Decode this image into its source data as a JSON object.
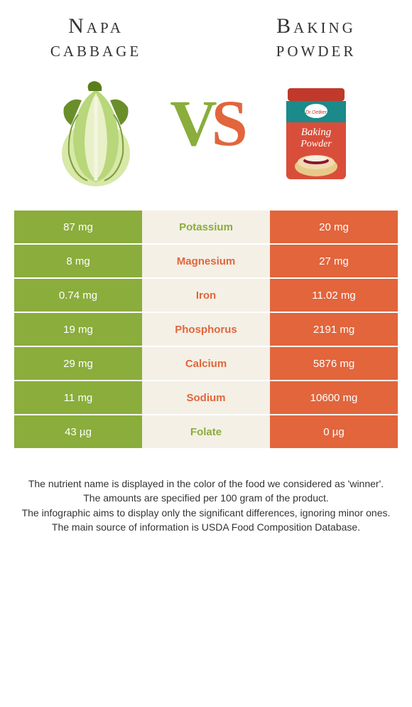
{
  "colors": {
    "left": "#8aad3c",
    "right": "#e2653c",
    "mid_bg": "#f4f0e6",
    "text": "#333333",
    "white": "#ffffff"
  },
  "left": {
    "title_line1": "Napa",
    "title_line2": "cabbage"
  },
  "right": {
    "title_line1": "Baking",
    "title_line2": "powder"
  },
  "vs": {
    "v": "V",
    "s": "S"
  },
  "nutrients": [
    {
      "left": "87 mg",
      "name": "Potassium",
      "right": "20 mg",
      "winner": "left"
    },
    {
      "left": "8 mg",
      "name": "Magnesium",
      "right": "27 mg",
      "winner": "right"
    },
    {
      "left": "0.74 mg",
      "name": "Iron",
      "right": "11.02 mg",
      "winner": "right"
    },
    {
      "left": "19 mg",
      "name": "Phosphorus",
      "right": "2191 mg",
      "winner": "right"
    },
    {
      "left": "29 mg",
      "name": "Calcium",
      "right": "5876 mg",
      "winner": "right"
    },
    {
      "left": "11 mg",
      "name": "Sodium",
      "right": "10600 mg",
      "winner": "right"
    },
    {
      "left": "43 µg",
      "name": "Folate",
      "right": "0 µg",
      "winner": "left"
    }
  ],
  "footer": [
    "The nutrient name is displayed in the color of the food we considered as 'winner'.",
    "The amounts are specified per 100 gram of the product.",
    "The infographic aims to display only the significant differences, ignoring minor ones.",
    "The main source of information is USDA Food Composition Database."
  ]
}
